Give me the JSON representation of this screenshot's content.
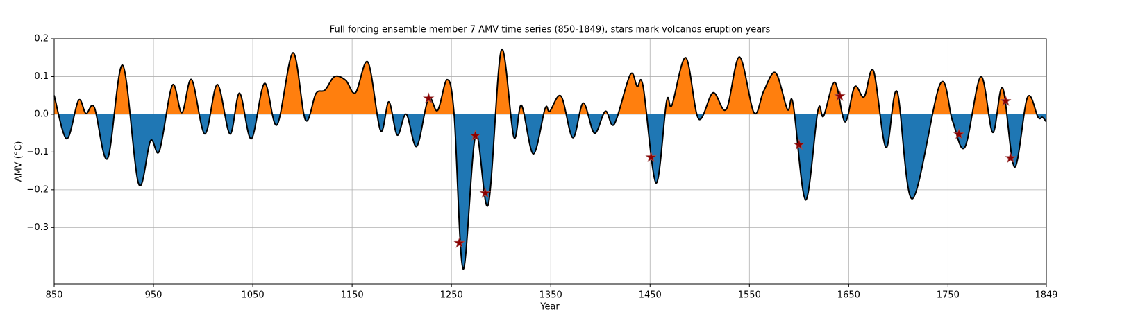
{
  "chart_data": {
    "type": "line",
    "title": "Full forcing ensemble member 7 AMV time series (850-1849), stars mark volcanos eruption years",
    "xlabel": "Year",
    "ylabel": "AMV (°C)",
    "xlim": [
      850,
      1849
    ],
    "ylim": [
      -0.45,
      0.2
    ],
    "xticks": [
      850,
      950,
      1050,
      1150,
      1250,
      1350,
      1450,
      1550,
      1650,
      1750,
      1849
    ],
    "yticks": [
      0.2,
      0.1,
      {
        "value": 0.0,
        "label": "0.0"
      },
      {
        "value": -0.1,
        "label": "−0.1"
      },
      {
        "value": -0.2,
        "label": "−0.2"
      },
      {
        "value": -0.3,
        "label": "−0.3"
      }
    ],
    "grid": true,
    "positive_color": "#ff7f0e",
    "negative_color": "#1f77b4",
    "x": [
      850,
      862.6,
      874.5,
      882,
      890.5,
      903.8,
      919,
      935,
      947,
      956,
      969,
      978.6,
      988.4,
      1001.7,
      1014.3,
      1027,
      1036.7,
      1048.5,
      1061.8,
      1074.4,
      1090.5,
      1103,
      1113.6,
      1122.6,
      1132.4,
      1143.6,
      1153.4,
      1166,
      1178.6,
      1187,
      1195.4,
      1204.5,
      1215,
      1226.8,
      1236,
      1245.7,
      1252.7,
      1261.8,
      1274.4,
      1287,
      1300.2,
      1312.8,
      1320.5,
      1332.4,
      1344.3,
      1349,
      1360.4,
      1372.2,
      1382.7,
      1394,
      1405,
      1414,
      1430,
      1437,
      1443,
      1456,
      1466.6,
      1472,
      1486,
      1498.8,
      1513.4,
      1526.7,
      1540,
      1554.7,
      1564.5,
      1576.4,
      1588.3,
      1594,
      1606.6,
      1619,
      1624.7,
      1636,
      1646.3,
      1656,
      1665.5,
      1675,
      1687.5,
      1698.7,
      1714,
      1742,
      1754.6,
      1767,
      1783,
      1795,
      1805,
      1817,
      1830,
      1840.7,
      1845,
      1849
    ],
    "series": [
      {
        "color": "#000000",
        "values": [
          0.05,
          -0.065,
          0.037,
          0.002,
          0.018,
          -0.117,
          0.13,
          -0.184,
          -0.07,
          -0.097,
          0.077,
          0.004,
          0.092,
          -0.052,
          0.079,
          -0.052,
          0.056,
          -0.065,
          0.082,
          -0.028,
          0.163,
          -0.015,
          0.055,
          0.064,
          0.1,
          0.09,
          0.057,
          0.138,
          -0.043,
          0.033,
          -0.055,
          0.0,
          -0.085,
          0.042,
          0.01,
          0.092,
          0.0,
          -0.41,
          -0.055,
          -0.24,
          0.17,
          -0.06,
          0.024,
          -0.105,
          0.015,
          0.008,
          0.048,
          -0.062,
          0.03,
          -0.05,
          0.008,
          -0.026,
          0.105,
          0.074,
          0.074,
          -0.182,
          0.034,
          0.024,
          0.15,
          -0.012,
          0.057,
          0.013,
          0.152,
          0.004,
          0.062,
          0.11,
          0.013,
          0.028,
          -0.227,
          0.01,
          -0.005,
          0.085,
          -0.02,
          0.073,
          0.046,
          0.115,
          -0.088,
          0.06,
          -0.224,
          0.08,
          -0.018,
          -0.087,
          0.1,
          -0.048,
          0.07,
          -0.14,
          0.045,
          -0.008,
          -0.008,
          -0.02
        ]
      }
    ],
    "volcanoes": {
      "color": "#8b0000",
      "x": [
        1227,
        1258,
        1274,
        1284,
        1451,
        1600,
        1641,
        1761,
        1808,
        1813
      ],
      "values": [
        0.042,
        -0.341,
        -0.057,
        -0.209,
        -0.114,
        -0.081,
        0.048,
        -0.053,
        0.035,
        -0.116
      ]
    }
  }
}
